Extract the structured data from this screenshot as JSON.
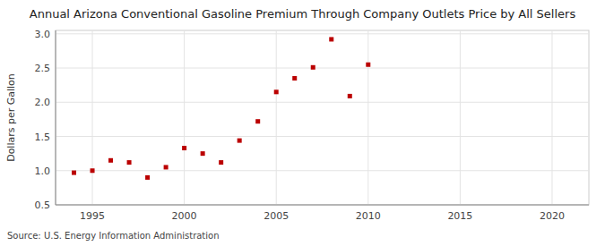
{
  "chart_data": {
    "type": "scatter",
    "title": "Annual Arizona Conventional Gasoline Premium Through Company Outlets Price by All Sellers",
    "ylabel": "Dollars per Gallon",
    "source": "Source: U.S. Energy Information Administration",
    "x": [
      1994,
      1995,
      1996,
      1997,
      1998,
      1999,
      2000,
      2001,
      2002,
      2003,
      2004,
      2005,
      2006,
      2007,
      2008,
      2009,
      2010
    ],
    "values": [
      0.97,
      1.0,
      1.15,
      1.12,
      0.9,
      1.05,
      1.33,
      1.25,
      1.12,
      1.44,
      1.72,
      2.15,
      2.35,
      2.51,
      2.92,
      2.09,
      2.55
    ],
    "color": "#bb0000",
    "marker": "square",
    "xlim": [
      1993,
      2022
    ],
    "ylim": [
      0.5,
      3.05
    ],
    "xticks": [
      1995,
      2000,
      2005,
      2010,
      2015,
      2020
    ],
    "yticks": [
      0.5,
      {
        "value": 1.0,
        "label": "1.0"
      },
      1.5,
      {
        "value": 2.0,
        "label": "2.0"
      },
      2.5,
      {
        "value": 3.0,
        "label": "3.0"
      }
    ],
    "grid": true
  }
}
